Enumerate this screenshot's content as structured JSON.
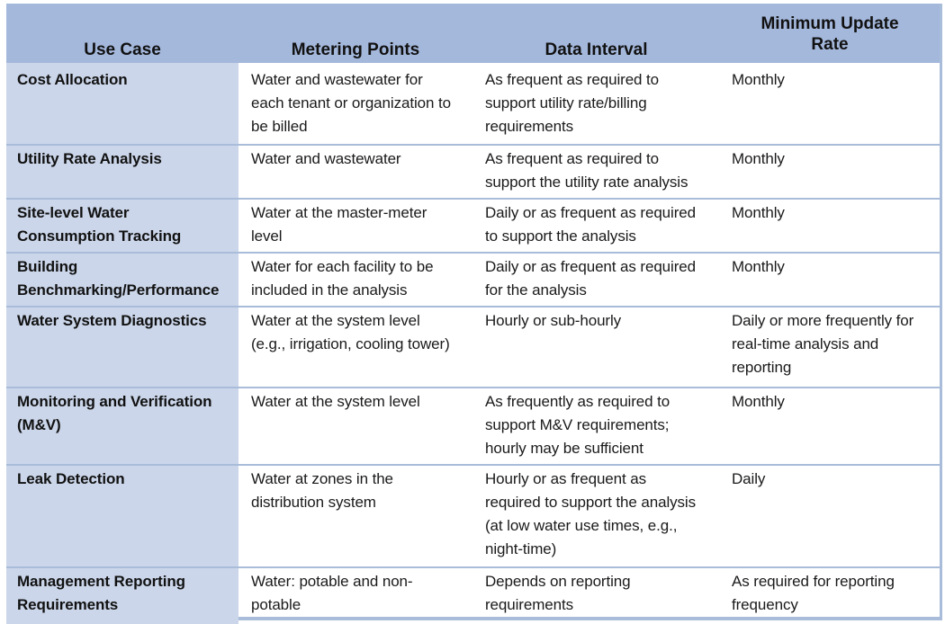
{
  "headers": {
    "use_case": "Use Case",
    "metering_points": "Metering Points",
    "data_interval": "Data Interval",
    "min_update_line1": "Minimum Update",
    "min_update_line2": "Rate"
  },
  "rows": [
    {
      "use_case": [
        "Cost Allocation"
      ],
      "metering": [
        "Water and wastewater for",
        "each tenant or organization to",
        "be billed"
      ],
      "interval": [
        "As frequent as required to",
        "support utility rate/billing",
        "requirements"
      ],
      "rate": [
        "Monthly"
      ]
    },
    {
      "use_case": [
        "Utility Rate Analysis"
      ],
      "metering": [
        "Water and wastewater"
      ],
      "interval": [
        "As frequent as required to",
        "support the utility rate analysis"
      ],
      "rate": [
        "Monthly"
      ]
    },
    {
      "use_case": [
        "Site-level Water",
        "Consumption Tracking"
      ],
      "metering": [
        "Water at the master-meter",
        "level"
      ],
      "interval": [
        "Daily or as frequent as required",
        "to support the analysis"
      ],
      "rate": [
        "Monthly"
      ]
    },
    {
      "use_case": [
        "Building",
        "Benchmarking/Performance"
      ],
      "metering": [
        "Water for each facility to be",
        "included in the analysis"
      ],
      "interval": [
        "Daily or as frequent as required",
        "for the analysis"
      ],
      "rate": [
        "Monthly"
      ]
    },
    {
      "use_case": [
        "Water System Diagnostics"
      ],
      "metering": [
        "Water at the system level",
        "(e.g., irrigation, cooling tower)"
      ],
      "interval": [
        "Hourly or sub-hourly"
      ],
      "rate": [
        "Daily or more frequently for",
        "real-time analysis and",
        "reporting"
      ]
    },
    {
      "use_case": [
        "Monitoring and Verification",
        "(M&V)"
      ],
      "metering": [
        "Water at the system level"
      ],
      "interval": [
        "As frequently as required to",
        "support M&V requirements;",
        "hourly may be sufficient"
      ],
      "rate": [
        "Monthly"
      ]
    },
    {
      "use_case": [
        "Leak Detection"
      ],
      "metering": [
        "Water at zones in the",
        "distribution system"
      ],
      "interval": [
        "Hourly or as frequent as",
        "required to support the analysis",
        "(at low water use times, e.g.,",
        "night-time)"
      ],
      "rate": [
        "Daily"
      ]
    },
    {
      "use_case": [
        "Management Reporting",
        "Requirements"
      ],
      "metering": [
        "Water: potable and non-",
        "potable"
      ],
      "interval": [
        "Depends on reporting",
        "requirements"
      ],
      "rate": [
        "As required for reporting",
        "frequency"
      ]
    }
  ]
}
